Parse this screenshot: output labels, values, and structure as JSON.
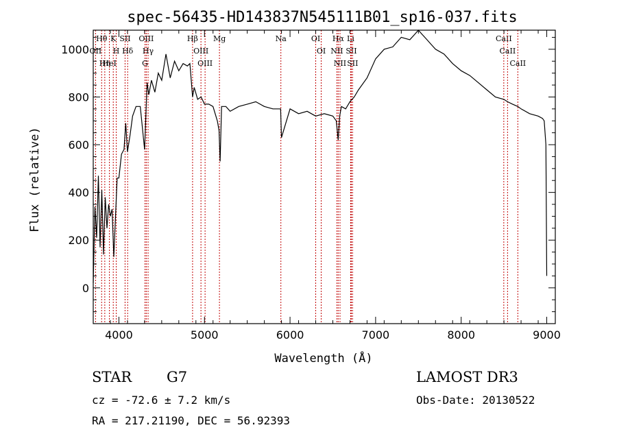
{
  "chart_data": {
    "type": "line",
    "title": "spec-56435-HD143837N545111B01_sp16-037.fits",
    "xlabel": "Wavelength (Å)",
    "ylabel": "Flux (relative)",
    "xlim": [
      3700,
      9100
    ],
    "ylim": [
      -150,
      1080
    ],
    "xticks": [
      4000,
      5000,
      6000,
      7000,
      8000,
      9000
    ],
    "yticks": [
      0,
      200,
      400,
      600,
      800,
      1000
    ],
    "grid": false,
    "series": [
      {
        "name": "flux",
        "x": [
          3700,
          3720,
          3740,
          3760,
          3780,
          3800,
          3820,
          3840,
          3860,
          3880,
          3900,
          3920,
          3940,
          3960,
          3980,
          4000,
          4030,
          4060,
          4080,
          4100,
          4130,
          4160,
          4200,
          4250,
          4300,
          4330,
          4350,
          4380,
          4420,
          4460,
          4500,
          4550,
          4600,
          4650,
          4700,
          4750,
          4800,
          4830,
          4861,
          4880,
          4920,
          4960,
          5000,
          5050,
          5100,
          5150,
          5170,
          5183,
          5200,
          5250,
          5300,
          5400,
          5500,
          5600,
          5700,
          5800,
          5890,
          5900,
          6000,
          6100,
          6200,
          6300,
          6400,
          6500,
          6540,
          6563,
          6580,
          6600,
          6650,
          6700,
          6750,
          6800,
          6900,
          7000,
          7100,
          7200,
          7300,
          7400,
          7450,
          7500,
          7550,
          7600,
          7650,
          7700,
          7800,
          7900,
          8000,
          8100,
          8200,
          8300,
          8400,
          8498,
          8542,
          8600,
          8662,
          8700,
          8800,
          8900,
          8950,
          8970,
          8990,
          9000
        ],
        "values": [
          20,
          340,
          210,
          470,
          170,
          410,
          140,
          380,
          250,
          350,
          300,
          330,
          130,
          300,
          460,
          460,
          560,
          580,
          690,
          570,
          640,
          720,
          760,
          760,
          580,
          860,
          810,
          870,
          820,
          900,
          870,
          980,
          880,
          950,
          910,
          940,
          930,
          940,
          800,
          840,
          790,
          800,
          770,
          770,
          760,
          700,
          660,
          530,
          760,
          760,
          740,
          760,
          770,
          780,
          760,
          750,
          750,
          630,
          750,
          730,
          740,
          720,
          730,
          720,
          700,
          620,
          720,
          760,
          750,
          780,
          800,
          830,
          880,
          960,
          1000,
          1010,
          1050,
          1040,
          1060,
          1080,
          1060,
          1040,
          1020,
          1000,
          980,
          940,
          910,
          890,
          860,
          830,
          800,
          790,
          780,
          770,
          760,
          750,
          730,
          720,
          710,
          700,
          600,
          50
        ]
      }
    ],
    "spectral_lines": [
      {
        "label": "Hθ",
        "wavelength": 3798
      },
      {
        "label": "OII",
        "wavelength": 3727
      },
      {
        "label": "Hη",
        "wavelength": 3835
      },
      {
        "label": "HeI",
        "wavelength": 3889
      },
      {
        "label": "K",
        "wavelength": 3934
      },
      {
        "label": "H",
        "wavelength": 3969
      },
      {
        "label": "SII",
        "wavelength": 4072
      },
      {
        "label": "Hδ",
        "wavelength": 4102
      },
      {
        "label": "OIII",
        "wavelength": 4320
      },
      {
        "label": "Hγ",
        "wavelength": 4341
      },
      {
        "label": "G",
        "wavelength": 4305
      },
      {
        "label": "Hβ",
        "wavelength": 4861
      },
      {
        "label": "OIII",
        "wavelength": 4959
      },
      {
        "label": "OIII",
        "wavelength": 5007
      },
      {
        "label": "Mg",
        "wavelength": 5175
      },
      {
        "label": "Na",
        "wavelength": 5893
      },
      {
        "label": "OI",
        "wavelength": 6300
      },
      {
        "label": "OI",
        "wavelength": 6364
      },
      {
        "label": "Hα",
        "wavelength": 6563
      },
      {
        "label": "NII",
        "wavelength": 6548
      },
      {
        "label": "NII",
        "wavelength": 6584
      },
      {
        "label": "Li",
        "wavelength": 6708
      },
      {
        "label": "SII",
        "wavelength": 6716
      },
      {
        "label": "SII",
        "wavelength": 6731
      },
      {
        "label": "CaII",
        "wavelength": 8498
      },
      {
        "label": "CaII",
        "wavelength": 8542
      },
      {
        "label": "CaII",
        "wavelength": 8662
      }
    ]
  },
  "info": {
    "object_class": "STAR",
    "subclass": "G7",
    "survey": "LAMOST DR3",
    "redshift": "cz = -72.6 ± 7.2 km/s",
    "obs_date": "Obs-Date: 20130522",
    "coords": "RA = 217.21190, DEC =  56.92393"
  }
}
